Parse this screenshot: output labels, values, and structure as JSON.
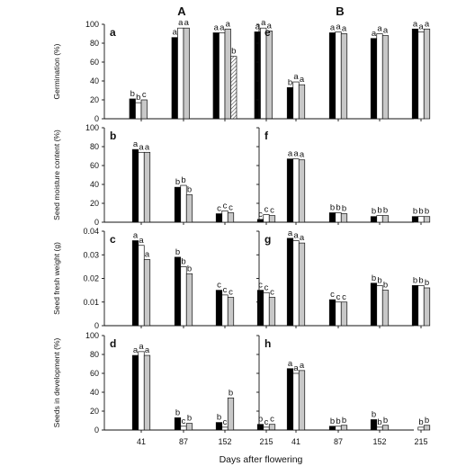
{
  "figure": {
    "column_titles": [
      "A",
      "B"
    ],
    "xlabel": "Days after flowering",
    "x_ticks": [
      "41",
      "87",
      "152",
      "215"
    ]
  },
  "rows": [
    {
      "ylabel": "Germination (%)",
      "ylim": [
        0,
        100
      ],
      "ticks": [
        "0",
        "20",
        "40",
        "60",
        "80",
        "100"
      ]
    },
    {
      "ylabel": "Seed moisture content (%)",
      "ylim": [
        0,
        100
      ],
      "ticks": [
        "0",
        "20",
        "40",
        "60",
        "80",
        "100"
      ]
    },
    {
      "ylabel": "Seed fresh weight (g)",
      "ylim": [
        0,
        0.04
      ],
      "ticks": [
        "0",
        "0.01",
        "0.02",
        "0.03",
        "0.04"
      ]
    },
    {
      "ylabel": "Seeds in development (%)",
      "ylim": [
        0,
        100
      ],
      "ticks": [
        "0",
        "20",
        "40",
        "60",
        "80",
        "100"
      ]
    }
  ],
  "chart_data": [
    {
      "panel": "a",
      "column": "A",
      "type": "bar",
      "categories": [
        "41",
        "87",
        "152",
        "215"
      ],
      "series_fills": [
        "#000000",
        "#ffffff",
        "#c8c8c8",
        "hatched"
      ],
      "values": [
        [
          21,
          86,
          91,
          92
        ],
        [
          17,
          96,
          91,
          96
        ],
        [
          20,
          96,
          95,
          93
        ],
        [
          0,
          0,
          66,
          0
        ]
      ],
      "letters": [
        [
          "b",
          "a",
          "a",
          "a"
        ],
        [
          "b",
          "a",
          "a",
          "a"
        ],
        [
          "c",
          "a",
          "a",
          "a"
        ],
        [
          "",
          "",
          "b",
          ""
        ]
      ],
      "ylim": [
        0,
        100
      ]
    },
    {
      "panel": "e",
      "column": "B",
      "type": "bar",
      "categories": [
        "41",
        "87",
        "152",
        "215"
      ],
      "values": [
        [
          33,
          91,
          85,
          95
        ],
        [
          39,
          92,
          90,
          92
        ],
        [
          36,
          90,
          88,
          95
        ]
      ],
      "letters": [
        [
          "b",
          "a",
          "a",
          "a"
        ],
        [
          "a",
          "a",
          "a",
          "a"
        ],
        [
          "a",
          "a",
          "a",
          "a"
        ]
      ],
      "ylim": [
        0,
        100
      ]
    },
    {
      "panel": "b",
      "column": "A",
      "type": "bar",
      "categories": [
        "41",
        "87",
        "152",
        "215"
      ],
      "values": [
        [
          77,
          37,
          9,
          3
        ],
        [
          74,
          39,
          12,
          8
        ],
        [
          74,
          29,
          10,
          7
        ]
      ],
      "letters": [
        [
          "a",
          "b",
          "c",
          "c"
        ],
        [
          "a",
          "b",
          "c",
          "c"
        ],
        [
          "a",
          "b",
          "c",
          "c"
        ]
      ],
      "ylim": [
        0,
        100
      ]
    },
    {
      "panel": "f",
      "column": "B",
      "type": "bar",
      "categories": [
        "41",
        "87",
        "152",
        "215"
      ],
      "values": [
        [
          67,
          10,
          6,
          6
        ],
        [
          67,
          10,
          7,
          6
        ],
        [
          66,
          9,
          7,
          6
        ]
      ],
      "letters": [
        [
          "a",
          "b",
          "b",
          "b"
        ],
        [
          "a",
          "b",
          "b",
          "b"
        ],
        [
          "a",
          "b",
          "b",
          "b"
        ]
      ],
      "ylim": [
        0,
        100
      ]
    },
    {
      "panel": "c",
      "column": "A",
      "type": "bar",
      "categories": [
        "41",
        "87",
        "152",
        "215"
      ],
      "values": [
        [
          0.036,
          0.029,
          0.015,
          0.015
        ],
        [
          0.034,
          0.025,
          0.013,
          0.014
        ],
        [
          0.028,
          0.022,
          0.012,
          0.012
        ]
      ],
      "letters": [
        [
          "a",
          "b",
          "c",
          "c"
        ],
        [
          "a",
          "b",
          "c",
          "c"
        ],
        [
          "a",
          "b",
          "c",
          "c"
        ]
      ],
      "ylim": [
        0,
        0.04
      ]
    },
    {
      "panel": "g",
      "column": "B",
      "type": "bar",
      "categories": [
        "41",
        "87",
        "152",
        "215"
      ],
      "values": [
        [
          0.037,
          0.011,
          0.018,
          0.017
        ],
        [
          0.036,
          0.01,
          0.017,
          0.017
        ],
        [
          0.035,
          0.01,
          0.015,
          0.016
        ]
      ],
      "letters": [
        [
          "a",
          "c",
          "b",
          "b"
        ],
        [
          "a",
          "c",
          "b",
          "b"
        ],
        [
          "a",
          "c",
          "b",
          "b"
        ]
      ],
      "ylim": [
        0,
        0.04
      ]
    },
    {
      "panel": "d",
      "column": "A",
      "type": "bar",
      "categories": [
        "41",
        "87",
        "152",
        "215"
      ],
      "values": [
        [
          79,
          13,
          8,
          6
        ],
        [
          83,
          4,
          3,
          3
        ],
        [
          79,
          7,
          34,
          6
        ]
      ],
      "letters": [
        [
          "a",
          "b",
          "b",
          "b"
        ],
        [
          "a",
          "c",
          "c",
          "c"
        ],
        [
          "a",
          "b",
          "b",
          "c"
        ]
      ],
      "ylim": [
        0,
        100
      ]
    },
    {
      "panel": "h",
      "column": "B",
      "type": "bar",
      "categories": [
        "41",
        "87",
        "152",
        "215"
      ],
      "values": [
        [
          65,
          4,
          11,
          0
        ],
        [
          60,
          4,
          3,
          3
        ],
        [
          63,
          5,
          5,
          5
        ]
      ],
      "letters": [
        [
          "a",
          "b",
          "b",
          ""
        ],
        [
          "a",
          "b",
          "b",
          "b"
        ],
        [
          "a",
          "b",
          "b",
          "b"
        ]
      ],
      "ylim": [
        0,
        100
      ]
    }
  ]
}
